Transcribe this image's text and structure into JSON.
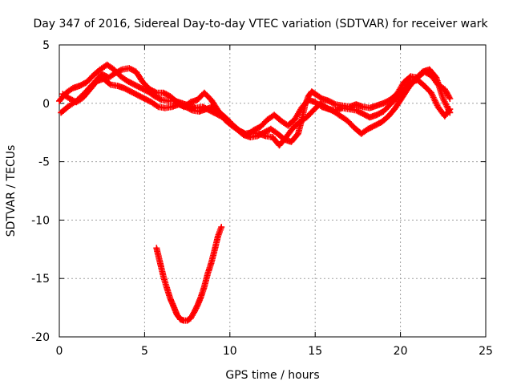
{
  "chart_data": {
    "type": "scatter",
    "title": "Day 347 of 2016, Sidereal Day-to-day VTEC variation (SDTVAR) for receiver wark",
    "xlabel": "GPS time / hours",
    "ylabel": "SDTVAR / TECUs",
    "xlim": [
      0,
      25
    ],
    "ylim": [
      -20,
      5
    ],
    "xticks": [
      0,
      5,
      10,
      15,
      20,
      25
    ],
    "yticks": [
      5,
      0,
      -5,
      -10,
      -15,
      -20
    ],
    "grid": true,
    "marker": "plus",
    "color": "#ff0000",
    "series": [
      {
        "name": "trace-a",
        "points": [
          [
            0.0,
            0.2
          ],
          [
            0.4,
            0.9
          ],
          [
            0.8,
            1.3
          ],
          [
            1.2,
            1.5
          ],
          [
            1.6,
            1.8
          ],
          [
            2.0,
            2.4
          ],
          [
            2.4,
            2.9
          ],
          [
            2.8,
            3.3
          ],
          [
            3.2,
            2.9
          ],
          [
            3.6,
            2.3
          ],
          [
            4.0,
            1.9
          ],
          [
            4.4,
            1.6
          ],
          [
            4.8,
            1.3
          ],
          [
            5.2,
            1.0
          ],
          [
            5.6,
            0.6
          ],
          [
            6.0,
            0.3
          ],
          [
            6.4,
            0.2
          ],
          [
            6.8,
            0.2
          ],
          [
            7.2,
            0.0
          ],
          [
            7.6,
            -0.2
          ],
          [
            8.0,
            -0.4
          ],
          [
            8.4,
            -0.3
          ],
          [
            8.8,
            -0.6
          ],
          [
            9.2,
            -0.9
          ],
          [
            9.6,
            -1.2
          ],
          [
            10.0,
            -1.6
          ],
          [
            10.4,
            -2.2
          ],
          [
            10.8,
            -2.7
          ],
          [
            11.2,
            -2.9
          ],
          [
            11.6,
            -2.8
          ],
          [
            12.0,
            -2.5
          ],
          [
            12.4,
            -2.2
          ],
          [
            12.8,
            -2.6
          ],
          [
            13.2,
            -3.1
          ],
          [
            13.6,
            -3.3
          ],
          [
            14.0,
            -2.6
          ],
          [
            14.2,
            -1.5
          ],
          [
            14.4,
            -0.2
          ],
          [
            14.6,
            0.6
          ],
          [
            14.8,
            1.0
          ],
          [
            15.0,
            0.8
          ],
          [
            15.4,
            0.4
          ],
          [
            15.8,
            0.2
          ],
          [
            16.2,
            -0.1
          ],
          [
            16.6,
            -0.2
          ],
          [
            17.0,
            -0.3
          ],
          [
            17.4,
            -0.1
          ],
          [
            17.8,
            -0.3
          ],
          [
            18.2,
            -0.4
          ],
          [
            18.6,
            -0.2
          ],
          [
            19.0,
            0.0
          ],
          [
            19.4,
            0.3
          ],
          [
            19.8,
            0.8
          ],
          [
            20.2,
            1.8
          ],
          [
            20.6,
            2.3
          ],
          [
            21.0,
            2.2
          ],
          [
            21.4,
            2.7
          ],
          [
            21.8,
            2.4
          ],
          [
            22.2,
            1.6
          ],
          [
            22.6,
            1.2
          ],
          [
            22.9,
            0.4
          ]
        ]
      },
      {
        "name": "trace-b",
        "points": [
          [
            0.1,
            -0.8
          ],
          [
            0.5,
            -0.3
          ],
          [
            1.0,
            0.2
          ],
          [
            1.5,
            0.9
          ],
          [
            2.0,
            1.7
          ],
          [
            2.5,
            2.5
          ],
          [
            2.9,
            2.2
          ],
          [
            3.3,
            2.6
          ],
          [
            3.7,
            2.9
          ],
          [
            4.1,
            3.0
          ],
          [
            4.5,
            2.7
          ],
          [
            4.9,
            1.8
          ],
          [
            5.3,
            1.2
          ],
          [
            5.7,
            0.9
          ],
          [
            6.1,
            0.9
          ],
          [
            6.5,
            0.6
          ],
          [
            6.9,
            0.1
          ],
          [
            7.3,
            -0.3
          ],
          [
            7.7,
            0.1
          ],
          [
            8.1,
            0.3
          ],
          [
            8.5,
            0.9
          ],
          [
            8.9,
            0.3
          ],
          [
            9.3,
            -0.6
          ],
          [
            9.7,
            -1.4
          ],
          [
            10.1,
            -1.9
          ],
          [
            10.5,
            -2.3
          ],
          [
            10.9,
            -2.6
          ],
          [
            11.3,
            -2.5
          ],
          [
            11.7,
            -2.6
          ],
          [
            12.1,
            -2.8
          ],
          [
            12.5,
            -2.9
          ],
          [
            12.9,
            -3.6
          ],
          [
            13.3,
            -2.9
          ],
          [
            13.7,
            -2.1
          ],
          [
            14.1,
            -1.6
          ],
          [
            14.5,
            -1.2
          ],
          [
            14.9,
            -0.6
          ],
          [
            15.3,
            0.0
          ],
          [
            15.7,
            -0.4
          ],
          [
            16.1,
            -0.7
          ],
          [
            16.5,
            -1.1
          ],
          [
            16.9,
            -1.5
          ],
          [
            17.3,
            -2.1
          ],
          [
            17.7,
            -2.6
          ],
          [
            18.1,
            -2.2
          ],
          [
            18.5,
            -1.9
          ],
          [
            18.9,
            -1.6
          ],
          [
            19.3,
            -1.1
          ],
          [
            19.7,
            -0.4
          ],
          [
            20.1,
            0.5
          ],
          [
            20.5,
            1.4
          ],
          [
            20.9,
            2.1
          ],
          [
            21.3,
            2.7
          ],
          [
            21.7,
            2.9
          ],
          [
            22.1,
            2.2
          ],
          [
            22.5,
            0.4
          ],
          [
            22.9,
            -0.8
          ]
        ]
      },
      {
        "name": "trace-c",
        "points": [
          [
            0.2,
            0.8
          ],
          [
            0.6,
            0.4
          ],
          [
            1.0,
            0.1
          ],
          [
            1.4,
            0.5
          ],
          [
            1.8,
            1.2
          ],
          [
            2.2,
            1.9
          ],
          [
            2.6,
            2.1
          ],
          [
            3.0,
            1.6
          ],
          [
            3.4,
            1.5
          ],
          [
            3.8,
            1.3
          ],
          [
            4.2,
            1.0
          ],
          [
            4.6,
            0.7
          ],
          [
            5.0,
            0.4
          ],
          [
            5.4,
            0.1
          ],
          [
            5.8,
            -0.3
          ],
          [
            6.2,
            -0.4
          ],
          [
            6.6,
            -0.3
          ],
          [
            7.0,
            -0.1
          ],
          [
            7.4,
            -0.3
          ],
          [
            7.8,
            -0.6
          ],
          [
            8.2,
            -0.7
          ],
          [
            8.6,
            -0.5
          ],
          [
            9.0,
            -0.3
          ],
          [
            9.4,
            -0.8
          ],
          [
            9.8,
            -1.3
          ],
          [
            10.2,
            -1.9
          ],
          [
            10.6,
            -2.4
          ],
          [
            11.0,
            -2.7
          ],
          [
            11.4,
            -2.3
          ],
          [
            11.8,
            -2.0
          ],
          [
            12.2,
            -1.4
          ],
          [
            12.6,
            -1.0
          ],
          [
            13.0,
            -1.5
          ],
          [
            13.4,
            -1.9
          ],
          [
            13.8,
            -1.4
          ],
          [
            14.2,
            -0.4
          ],
          [
            14.6,
            0.3
          ],
          [
            15.0,
            0.1
          ],
          [
            15.4,
            -0.3
          ],
          [
            15.8,
            -0.5
          ],
          [
            16.2,
            -0.6
          ],
          [
            16.6,
            -0.4
          ],
          [
            17.0,
            -0.5
          ],
          [
            17.4,
            -0.6
          ],
          [
            17.8,
            -0.9
          ],
          [
            18.2,
            -1.2
          ],
          [
            18.6,
            -1.0
          ],
          [
            19.0,
            -0.7
          ],
          [
            19.4,
            -0.1
          ],
          [
            19.8,
            0.5
          ],
          [
            20.2,
            1.2
          ],
          [
            20.6,
            1.8
          ],
          [
            21.0,
            2.0
          ],
          [
            21.4,
            1.5
          ],
          [
            21.8,
            0.9
          ],
          [
            22.2,
            -0.3
          ],
          [
            22.6,
            -1.1
          ],
          [
            22.9,
            -0.5
          ]
        ]
      },
      {
        "name": "trace-d",
        "points": [
          [
            5.7,
            -12.4
          ],
          [
            5.9,
            -13.6
          ],
          [
            6.1,
            -14.8
          ],
          [
            6.3,
            -15.8
          ],
          [
            6.5,
            -16.7
          ],
          [
            6.7,
            -17.4
          ],
          [
            6.9,
            -18.1
          ],
          [
            7.1,
            -18.5
          ],
          [
            7.3,
            -18.6
          ],
          [
            7.5,
            -18.6
          ],
          [
            7.7,
            -18.4
          ],
          [
            7.9,
            -17.9
          ],
          [
            8.1,
            -17.3
          ],
          [
            8.3,
            -16.6
          ],
          [
            8.5,
            -15.7
          ],
          [
            8.7,
            -14.6
          ],
          [
            8.9,
            -13.7
          ],
          [
            9.1,
            -12.6
          ],
          [
            9.3,
            -11.4
          ],
          [
            9.5,
            -10.6
          ]
        ]
      }
    ]
  }
}
